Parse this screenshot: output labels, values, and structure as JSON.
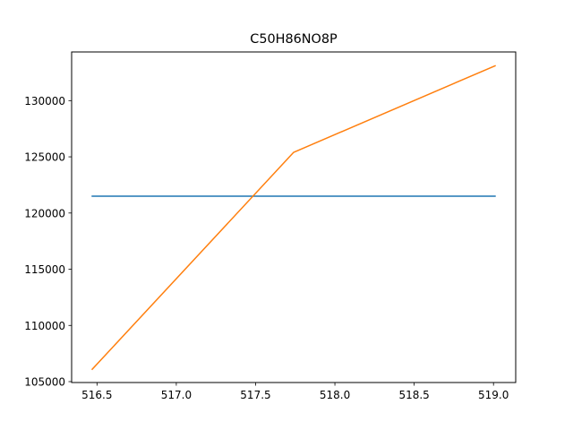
{
  "chart_data": {
    "type": "line",
    "title": "C50H86NO8P",
    "xlabel": "",
    "ylabel": "",
    "xlim": [
      516.34,
      519.14
    ],
    "ylim": [
      104920,
      134330
    ],
    "xticks": [
      516.5,
      517.0,
      517.5,
      518.0,
      518.5,
      519.0
    ],
    "xtick_labels": [
      "516.5",
      "517.0",
      "517.5",
      "518.0",
      "518.5",
      "519.0"
    ],
    "yticks": [
      105000,
      110000,
      115000,
      120000,
      125000,
      130000
    ],
    "ytick_labels": [
      "105000",
      "110000",
      "115000",
      "120000",
      "125000",
      "130000"
    ],
    "grid": false,
    "series": [
      {
        "color": "#1f77b4",
        "x": [
          516.47,
          519.01
        ],
        "y": [
          121500,
          121500
        ]
      },
      {
        "color": "#ff7f0e",
        "x": [
          516.47,
          517.74,
          519.01
        ],
        "y": [
          106100,
          125400,
          133100
        ]
      }
    ]
  }
}
